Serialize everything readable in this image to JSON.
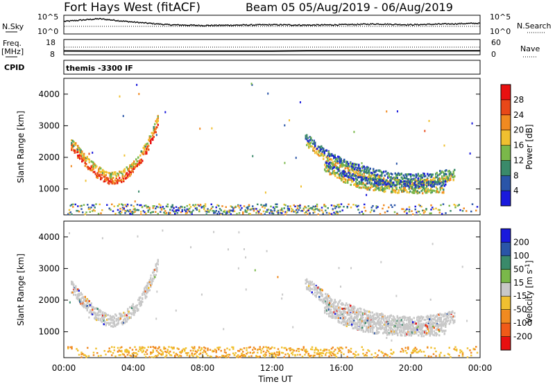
{
  "header": {
    "station_title": "Fort Hays West (fitACF)",
    "beam_info": "Beam 05 05/Aug/2019 - 06/Aug/2019"
  },
  "noise_panel": {
    "left_label": "N.Sky",
    "left_ticks": [
      "10^5",
      "10^0"
    ],
    "right_label": "N.Search",
    "right_ticks": [
      "10^5",
      "10^0"
    ]
  },
  "freq_panel": {
    "left_label_line1": "Freq.",
    "left_label_line2": "[MHz]",
    "left_ticks": [
      "18",
      "8"
    ],
    "right_label": "Nave",
    "right_ticks": [
      "60",
      "0"
    ]
  },
  "cpid": {
    "label": "CPID",
    "value": "themis -3300 IF"
  },
  "x_axis": {
    "title": "Time UT",
    "ticks": [
      "00:00",
      "04:00",
      "08:00",
      "12:00",
      "16:00",
      "20:00",
      "00:00"
    ]
  },
  "colors": {
    "power_scale": [
      "#1a1adc",
      "#2a55a8",
      "#3a8a6a",
      "#7ab84a",
      "#f0c030",
      "#f08a20",
      "#e84818",
      "#e81010"
    ],
    "velocity_scale": [
      "#1a1adc",
      "#2a55a8",
      "#3a8a6a",
      "#7ab84a",
      "#c8c8c8",
      "#f0c030",
      "#f08a20",
      "#f05a18",
      "#e81010"
    ]
  },
  "chart_data": [
    {
      "type": "line",
      "name": "noise",
      "series": [
        {
          "name": "N.Sky",
          "x": [
            0,
            2,
            4,
            6,
            8,
            10,
            12,
            14,
            16,
            18,
            20,
            22,
            24
          ],
          "y_log10": [
            3.5,
            4.2,
            3.3,
            2.6,
            2.4,
            2.5,
            2.6,
            2.5,
            2.6,
            2.8,
            2.6,
            2.8,
            3.0
          ]
        }
      ],
      "xlim": [
        0,
        24
      ]
    },
    {
      "type": "line",
      "name": "frequency",
      "series": [
        {
          "name": "Freq.",
          "x": [
            0,
            4,
            8,
            12,
            14,
            16,
            20,
            24
          ],
          "y": [
            10.5,
            10.4,
            10.4,
            10.4,
            10.6,
            10.6,
            10.6,
            10.6
          ]
        }
      ],
      "ylabel": "[MHz]",
      "ylim": [
        8,
        18
      ],
      "xlim": [
        0,
        24
      ]
    },
    {
      "type": "heatmap",
      "name": "power",
      "xlabel": "",
      "ylabel": "Slant Range [km]",
      "ylim": [
        180,
        4500
      ],
      "xlim": [
        0,
        24
      ],
      "y_ticks": [
        "1000",
        "2000",
        "3000",
        "4000"
      ],
      "colorbar": {
        "label": "Power [dB]",
        "ticks": [
          "4",
          "8",
          "12",
          "16",
          "20",
          "24",
          "28"
        ],
        "range": [
          0,
          30
        ]
      },
      "features": [
        {
          "x": [
            0.4,
            1.0,
            1.8,
            2.6,
            3.4,
            4.2,
            4.8,
            5.4
          ],
          "y": [
            2450,
            2050,
            1600,
            1350,
            1450,
            1850,
            2400,
            3200
          ],
          "value": 20
        },
        {
          "x": [
            13.9,
            15.0,
            16.0,
            17.0,
            18.0,
            19.0,
            20.0,
            21.0,
            22.5
          ],
          "y": [
            2600,
            2100,
            1800,
            1600,
            1450,
            1350,
            1300,
            1350,
            1500
          ],
          "value": 11
        },
        {
          "x": [
            15.0,
            16.0,
            17.0,
            18.0,
            19.0,
            20.0,
            21.0,
            22.0
          ],
          "y": [
            1800,
            1450,
            1250,
            1150,
            1100,
            1080,
            1080,
            1100
          ],
          "value": 10
        }
      ]
    },
    {
      "type": "heatmap",
      "name": "velocity",
      "xlabel": "Time UT",
      "ylabel": "Slant Range [km]",
      "ylim": [
        180,
        4500
      ],
      "xlim": [
        0,
        24
      ],
      "y_ticks": [
        "1000",
        "2000",
        "3000",
        "4000"
      ],
      "colorbar": {
        "label": "Velocity [m s^-1]",
        "ticks": [
          "200",
          "100",
          "50",
          "15",
          "-15",
          "-50",
          "-100",
          "-200"
        ],
        "range": [
          -250,
          250
        ]
      },
      "features": [
        {
          "x": [
            0.4,
            1.0,
            1.8,
            2.6,
            3.4,
            4.2,
            4.8,
            5.4
          ],
          "y": [
            2450,
            2050,
            1600,
            1350,
            1450,
            1850,
            2400,
            3200
          ],
          "value": 0
        },
        {
          "x": [
            13.9,
            15.0,
            16.0,
            17.0,
            18.0,
            19.0,
            20.0,
            21.0,
            22.5
          ],
          "y": [
            2600,
            2100,
            1800,
            1600,
            1450,
            1350,
            1300,
            1350,
            1500
          ],
          "value": 0
        },
        {
          "x": [
            15.0,
            16.0,
            17.0,
            18.0,
            19.0,
            20.0,
            21.0,
            22.0
          ],
          "y": [
            1800,
            1450,
            1250,
            1150,
            1100,
            1080,
            1080,
            1100
          ],
          "value": 0
        }
      ]
    }
  ]
}
